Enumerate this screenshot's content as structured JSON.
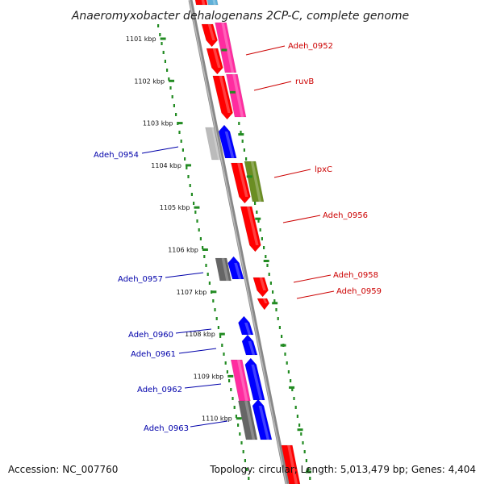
{
  "title": "Anaeromyxobacter dehalogenans 2CP-C, complete genome",
  "accession": "Accession: NC_007760",
  "topology": "Topology: circular; Length: 5,013,479 bp; Genes: 4,404",
  "ticks": [
    {
      "label": "1101 kbp",
      "kbp": 1101
    },
    {
      "label": "1102 kbp",
      "kbp": 1102
    },
    {
      "label": "1103 kbp",
      "kbp": 1103
    },
    {
      "label": "1104 kbp",
      "kbp": 1104
    },
    {
      "label": "1105 kbp",
      "kbp": 1105
    },
    {
      "label": "1106 kbp",
      "kbp": 1106
    },
    {
      "label": "1107 kbp",
      "kbp": 1107
    },
    {
      "label": "1108 kbp",
      "kbp": 1108
    },
    {
      "label": "1109 kbp",
      "kbp": 1109
    },
    {
      "label": "1110 kbp",
      "kbp": 1110
    }
  ],
  "gene_labels": [
    {
      "name": "Adeh_0952",
      "strand": "reverse"
    },
    {
      "name": "ruvB",
      "strand": "reverse"
    },
    {
      "name": "Adeh_0954",
      "strand": "forward"
    },
    {
      "name": "lpxC",
      "strand": "reverse"
    },
    {
      "name": "Adeh_0956",
      "strand": "reverse"
    },
    {
      "name": "Adeh_0957",
      "strand": "forward"
    },
    {
      "name": "Adeh_0958",
      "strand": "reverse"
    },
    {
      "name": "Adeh_0959",
      "strand": "reverse"
    },
    {
      "name": "Adeh_0960",
      "strand": "forward"
    },
    {
      "name": "Adeh_0961",
      "strand": "forward"
    },
    {
      "name": "Adeh_0962",
      "strand": "forward"
    },
    {
      "name": "Adeh_0963",
      "strand": "forward"
    }
  ],
  "colors": {
    "reverse_cds": "#ff0000",
    "forward_cds": "#0000ff",
    "reverse_label": "#cc0000",
    "forward_label": "#0000aa",
    "cog_magenta": "#ff2ca0",
    "cog_olive": "#6b8e23",
    "cog_gray": "#bbbbbb",
    "cog_dark_gray": "#666666",
    "backbone": "#888888",
    "tick_green": "#228b22"
  }
}
